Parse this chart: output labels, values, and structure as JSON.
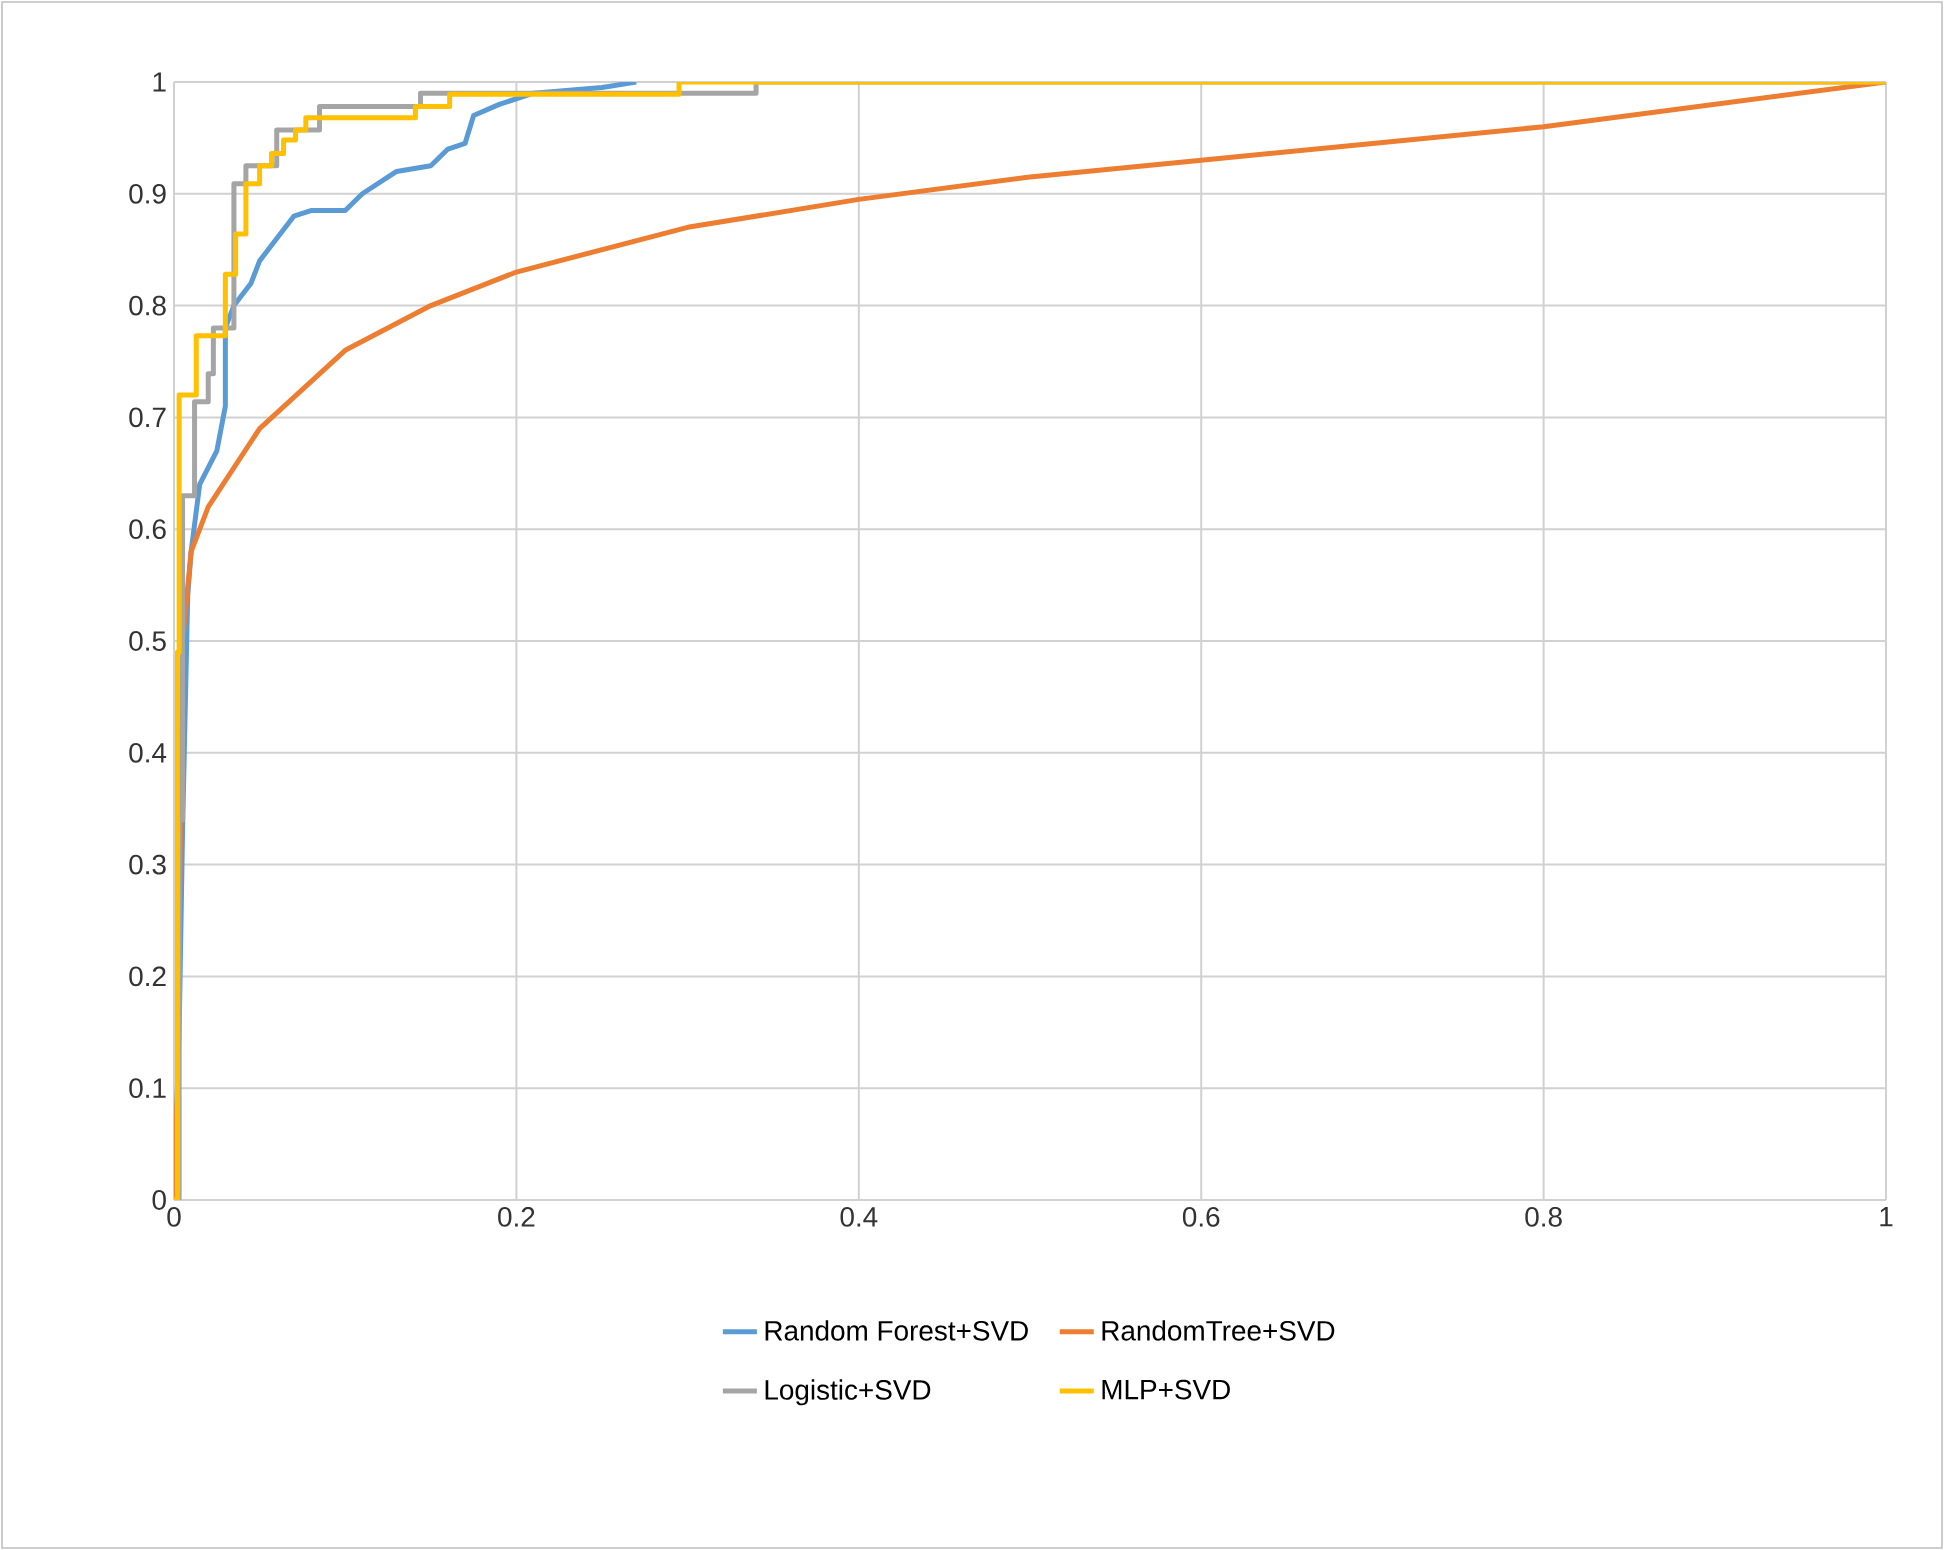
{
  "chart_data": {
    "type": "line",
    "xlim": [
      0,
      1
    ],
    "ylim": [
      0,
      1
    ],
    "xticks": [
      0,
      0.2,
      0.4,
      0.6,
      0.8,
      1
    ],
    "yticks": [
      0,
      0.1,
      0.2,
      0.3,
      0.4,
      0.5,
      0.6,
      0.7,
      0.8,
      0.9,
      1
    ],
    "grid": true,
    "legend": "bottom",
    "marker": "none",
    "line_style": "solid",
    "series": [
      {
        "name": "Random Forest+SVD",
        "color": "#5b9bd5",
        "x": [
          0,
          0.003,
          0.005,
          0.008,
          0.01,
          0.015,
          0.025,
          0.03,
          0.03,
          0.035,
          0.045,
          0.05,
          0.06,
          0.07,
          0.08,
          0.1,
          0.11,
          0.13,
          0.15,
          0.16,
          0.17,
          0.175,
          0.19,
          0.21,
          0.25,
          0.27
        ],
        "values": [
          0,
          0.15,
          0.33,
          0.54,
          0.58,
          0.64,
          0.67,
          0.71,
          0.78,
          0.8,
          0.82,
          0.84,
          0.86,
          0.88,
          0.885,
          0.885,
          0.9,
          0.92,
          0.925,
          0.94,
          0.945,
          0.97,
          0.98,
          0.99,
          0.995,
          1
        ]
      },
      {
        "name": "RandomTree+SVD",
        "color": "#ed7d31",
        "x": [
          0,
          0.002,
          0.005,
          0.01,
          0.02,
          0.05,
          0.1,
          0.15,
          0.2,
          0.3,
          0.4,
          0.5,
          0.6,
          0.7,
          0.8,
          0.9,
          1
        ],
        "values": [
          0,
          0.1,
          0.5,
          0.58,
          0.62,
          0.69,
          0.76,
          0.8,
          0.83,
          0.87,
          0.895,
          0.915,
          0.93,
          0.945,
          0.96,
          0.98,
          1
        ]
      },
      {
        "name": "Logistic+SVD",
        "color": "#a5a5a5",
        "x": [
          0,
          0.003,
          0.003,
          0.005,
          0.005,
          0.012,
          0.012,
          0.02,
          0.02,
          0.023,
          0.023,
          0.035,
          0.035,
          0.042,
          0.042,
          0.06,
          0.06,
          0.085,
          0.085,
          0.144,
          0.144,
          0.34,
          0.34,
          1
        ],
        "values": [
          0,
          0,
          0.34,
          0.34,
          0.63,
          0.63,
          0.714,
          0.714,
          0.739,
          0.739,
          0.78,
          0.78,
          0.909,
          0.909,
          0.925,
          0.925,
          0.957,
          0.957,
          0.978,
          0.978,
          0.99,
          0.99,
          1,
          1
        ]
      },
      {
        "name": "MLP+SVD",
        "color": "#ffc000",
        "x": [
          0,
          0.002,
          0.002,
          0.003,
          0.003,
          0.013,
          0.013,
          0.03,
          0.03,
          0.036,
          0.036,
          0.042,
          0.042,
          0.05,
          0.05,
          0.057,
          0.057,
          0.064,
          0.064,
          0.071,
          0.071,
          0.077,
          0.077,
          0.141,
          0.141,
          0.161,
          0.161,
          0.295,
          0.295,
          1
        ],
        "values": [
          0,
          0,
          0.49,
          0.49,
          0.72,
          0.72,
          0.773,
          0.773,
          0.828,
          0.828,
          0.864,
          0.864,
          0.909,
          0.909,
          0.925,
          0.925,
          0.936,
          0.936,
          0.948,
          0.948,
          0.957,
          0.957,
          0.968,
          0.968,
          0.978,
          0.978,
          0.989,
          0.989,
          1,
          1
        ]
      }
    ]
  }
}
